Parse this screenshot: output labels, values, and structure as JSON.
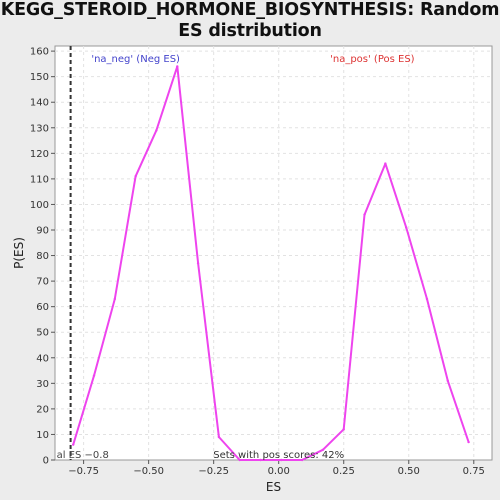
{
  "chart_data": {
    "type": "line",
    "title": "KEGG_STEROID_HORMONE_BIOSYNTHESIS: Random ES distribution",
    "xlabel": "ES",
    "ylabel": "P(ES)",
    "xlim": [
      -0.86,
      0.82
    ],
    "ylim": [
      0,
      162
    ],
    "x_ticks": [
      -0.75,
      -0.5,
      -0.25,
      0.0,
      0.25,
      0.5,
      0.75
    ],
    "x_tick_labels": [
      "−0.75",
      "−0.50",
      "−0.25",
      "0.00",
      "0.25",
      "0.50",
      "0.75"
    ],
    "y_ticks": [
      0,
      10,
      20,
      30,
      40,
      50,
      60,
      70,
      80,
      90,
      100,
      110,
      120,
      130,
      140,
      150,
      160
    ],
    "grid": true,
    "series": [
      {
        "color": "#ee44ee",
        "x": [
          -0.79,
          -0.71,
          -0.63,
          -0.55,
          -0.47,
          -0.39,
          -0.31,
          -0.23,
          -0.15,
          -0.07,
          0.01,
          0.09,
          0.17,
          0.25,
          0.33,
          0.41,
          0.49,
          0.57,
          0.65,
          0.73
        ],
        "y": [
          6,
          33,
          63,
          111,
          129,
          154,
          77,
          9,
          0,
          0,
          0,
          0,
          4,
          12,
          96,
          116,
          91,
          63,
          31,
          7
        ]
      }
    ],
    "reference_line": {
      "x": -0.8,
      "style": "dashed",
      "color": "#333333",
      "label": "al ES −0.8"
    },
    "annotations": [
      {
        "text": "'na_neg' (Neg ES)",
        "color": "#4444cc",
        "x": -0.55,
        "y": 157
      },
      {
        "text": "'na_pos' (Pos ES)",
        "color": "#dd3333",
        "x": 0.36,
        "y": 157
      },
      {
        "text": "Sets with pos scores: 42%",
        "color": "#333333",
        "x": 0.0,
        "y": 1
      }
    ]
  }
}
